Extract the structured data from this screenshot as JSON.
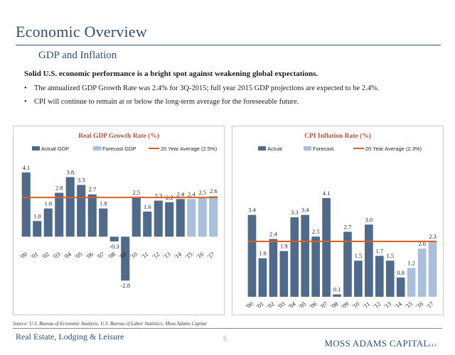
{
  "page": {
    "title": "Economic Overview",
    "subtitle": "GDP and Inflation",
    "lead": "Solid U.S. economic performance is a bright spot against weakening global expectations.",
    "bullets": [
      "The annualized GDP Growth Rate was 2.4% for 3Q-2015; full year 2015 GDP projections are expected to be 2.4%.",
      "CPI will continue to remain at or below the long-term average for the foreseeable future."
    ],
    "source": "Source:  U.S. Bureau of Economic Analysis, U.S. Bureau of Labor Statistics; Moss Adams Capital",
    "footer_left": "Real Estate, Lodging & Leisure",
    "page_number": "5",
    "brand": "MOSS ADAMS CAPITAL",
    "brand_suffix": "LLC"
  },
  "colors": {
    "actual": "#4f6a8a",
    "forecast": "#a9bfdb",
    "average": "#d9601c",
    "title": "#b5523b",
    "heading": "#2f4f7a"
  },
  "chart_data": [
    {
      "type": "bar",
      "title": "Real GDP Growth Rate (%)",
      "categories": [
        "'00",
        "'01",
        "'02",
        "'03",
        "'04",
        "'05",
        "'06",
        "'07",
        "'08",
        "'09",
        "'10",
        "'11",
        "'12",
        "'13",
        "'14",
        "'15",
        "'16",
        "'17"
      ],
      "series": [
        {
          "name": "Actual GDP",
          "values": [
            4.1,
            1.0,
            1.8,
            2.8,
            3.8,
            3.3,
            2.7,
            1.8,
            -0.3,
            -2.8,
            2.5,
            1.6,
            2.3,
            2.2,
            2.4,
            null,
            null,
            null
          ]
        },
        {
          "name": "Forecast GDP",
          "values": [
            null,
            null,
            null,
            null,
            null,
            null,
            null,
            null,
            null,
            null,
            null,
            null,
            null,
            null,
            null,
            2.4,
            2.5,
            2.6
          ]
        }
      ],
      "reference_line": {
        "name": "20 Year Average (2.5%)",
        "value": 2.5
      },
      "value_labels": [
        "4.1",
        "1.0",
        "1.8",
        "2.8",
        "3.8",
        "3.3",
        "2.7",
        "1.8",
        "-0.3",
        "-2.8",
        "2.5",
        "1.6",
        "2.3",
        "2.2",
        "2.4",
        "2.4",
        "2.5",
        "2.6"
      ],
      "ylim": [
        -3.2,
        4.5
      ],
      "legend": "top"
    },
    {
      "type": "bar",
      "title": "CPI Inflation Rate (%)",
      "categories": [
        "'00",
        "'01",
        "'02",
        "'03",
        "'04",
        "'05",
        "'06",
        "'07",
        "'08",
        "'09",
        "'10",
        "'11",
        "'12",
        "'13",
        "'14",
        "'15",
        "'16",
        "'17"
      ],
      "series": [
        {
          "name": "Actual",
          "values": [
            3.4,
            1.6,
            2.4,
            1.9,
            3.3,
            3.4,
            2.5,
            4.1,
            0.1,
            2.7,
            1.5,
            3.0,
            1.7,
            1.5,
            0.8,
            null,
            null,
            null
          ]
        },
        {
          "name": "Forecast",
          "values": [
            null,
            null,
            null,
            null,
            null,
            null,
            null,
            null,
            null,
            null,
            null,
            null,
            null,
            null,
            null,
            1.2,
            2.0,
            2.3
          ]
        }
      ],
      "reference_line": {
        "name": "20 Year Average (2.3%)",
        "value": 2.3
      },
      "value_labels": [
        "3.4",
        "1.6",
        "2.4",
        "1.9",
        "3.3",
        "3.4",
        "2.5",
        "4.1",
        "0.1",
        "2.7",
        "1.5",
        "3.0",
        "1.7",
        "1.5",
        "0.8",
        "1.2",
        "2.0",
        "2.3"
      ],
      "ylim": [
        0,
        4.6
      ],
      "legend": "top"
    }
  ]
}
